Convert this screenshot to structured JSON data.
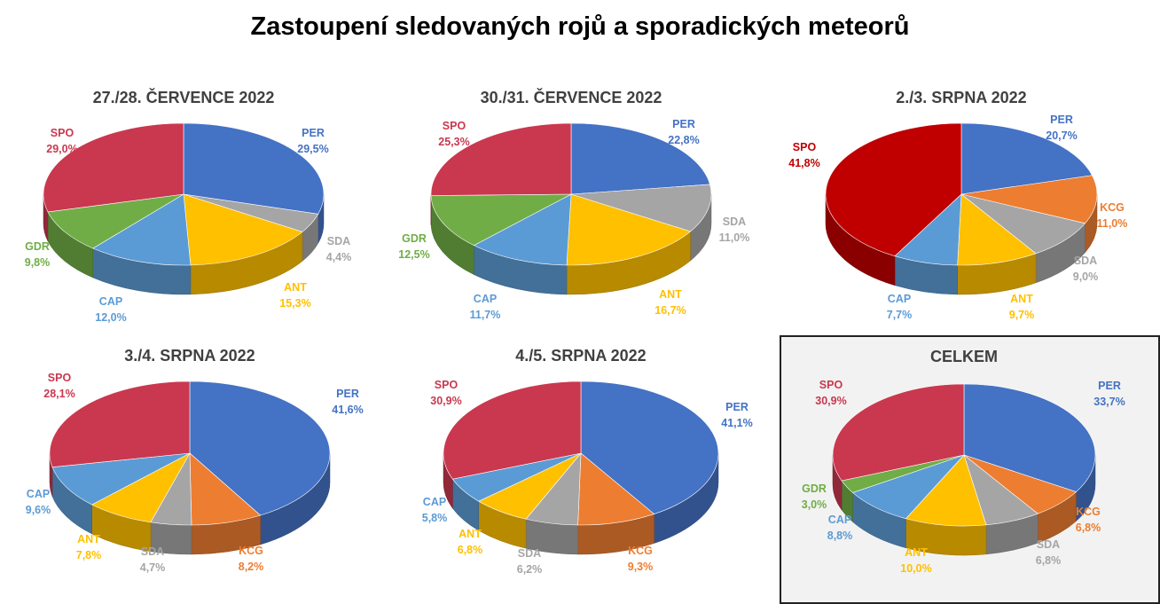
{
  "title": "Zastoupení sledovaných rojů a sporadických meteorů",
  "colors": {
    "PER": "#4472c4",
    "SDA": "#a5a5a5",
    "ANT": "#ffc000",
    "CAP": "#5b9bd5",
    "GDR": "#70ad47",
    "SPO": "#c9384f",
    "KCG": "#ed7d31",
    "SPO_red": "#c00000"
  },
  "chart_data": [
    {
      "type": "pie",
      "title": "27./28. ČERVENCE 2022",
      "slices": [
        {
          "label": "PER",
          "value": 29.5,
          "text": "29,5%"
        },
        {
          "label": "SDA",
          "value": 4.4,
          "text": "4,4%"
        },
        {
          "label": "ANT",
          "value": 15.3,
          "text": "15,3%"
        },
        {
          "label": "CAP",
          "value": 12.0,
          "text": "12,0%"
        },
        {
          "label": "GDR",
          "value": 9.8,
          "text": "9,8%"
        },
        {
          "label": "SPO",
          "value": 29.0,
          "text": "29,0%"
        }
      ]
    },
    {
      "type": "pie",
      "title": "30./31. ČERVENCE 2022",
      "slices": [
        {
          "label": "PER",
          "value": 22.8,
          "text": "22,8%"
        },
        {
          "label": "SDA",
          "value": 11.0,
          "text": "11,0%"
        },
        {
          "label": "ANT",
          "value": 16.7,
          "text": "16,7%"
        },
        {
          "label": "CAP",
          "value": 11.7,
          "text": "11,7%"
        },
        {
          "label": "GDR",
          "value": 12.5,
          "text": "12,5%"
        },
        {
          "label": "SPO",
          "value": 25.3,
          "text": "25,3%"
        }
      ]
    },
    {
      "type": "pie",
      "title": "2./3. SRPNA 2022",
      "spo_color": "#c00000",
      "slices": [
        {
          "label": "PER",
          "value": 20.7,
          "text": "20,7%"
        },
        {
          "label": "KCG",
          "value": 11.0,
          "text": "11,0%"
        },
        {
          "label": "SDA",
          "value": 9.0,
          "text": "9,0%"
        },
        {
          "label": "ANT",
          "value": 9.7,
          "text": "9,7%"
        },
        {
          "label": "CAP",
          "value": 7.7,
          "text": "7,7%"
        },
        {
          "label": "SPO",
          "value": 41.8,
          "text": "41,8%"
        }
      ]
    },
    {
      "type": "pie",
      "title": "3./4. SRPNA 2022",
      "slices": [
        {
          "label": "PER",
          "value": 41.6,
          "text": "41,6%"
        },
        {
          "label": "KCG",
          "value": 8.2,
          "text": "8,2%"
        },
        {
          "label": "SDA",
          "value": 4.7,
          "text": "4,7%"
        },
        {
          "label": "ANT",
          "value": 7.8,
          "text": "7,8%"
        },
        {
          "label": "CAP",
          "value": 9.6,
          "text": "9,6%"
        },
        {
          "label": "SPO",
          "value": 28.1,
          "text": "28,1%"
        }
      ]
    },
    {
      "type": "pie",
      "title": "4./5. SRPNA 2022",
      "slices": [
        {
          "label": "PER",
          "value": 41.1,
          "text": "41,1%"
        },
        {
          "label": "KCG",
          "value": 9.3,
          "text": "9,3%"
        },
        {
          "label": "SDA",
          "value": 6.2,
          "text": "6,2%"
        },
        {
          "label": "ANT",
          "value": 6.8,
          "text": "6,8%"
        },
        {
          "label": "CAP",
          "value": 5.8,
          "text": "5,8%"
        },
        {
          "label": "SPO",
          "value": 30.9,
          "text": "30,9%"
        }
      ]
    },
    {
      "type": "pie",
      "title": "CELKEM",
      "slices": [
        {
          "label": "PER",
          "value": 33.7,
          "text": "33,7%"
        },
        {
          "label": "KCG",
          "value": 6.8,
          "text": "6,8%"
        },
        {
          "label": "SDA",
          "value": 6.8,
          "text": "6,8%"
        },
        {
          "label": "ANT",
          "value": 10.0,
          "text": "10,0%"
        },
        {
          "label": "CAP",
          "value": 8.8,
          "text": "8,8%"
        },
        {
          "label": "GDR",
          "value": 3.0,
          "text": "3,0%"
        },
        {
          "label": "SPO",
          "value": 30.9,
          "text": "30,9%"
        }
      ]
    }
  ]
}
